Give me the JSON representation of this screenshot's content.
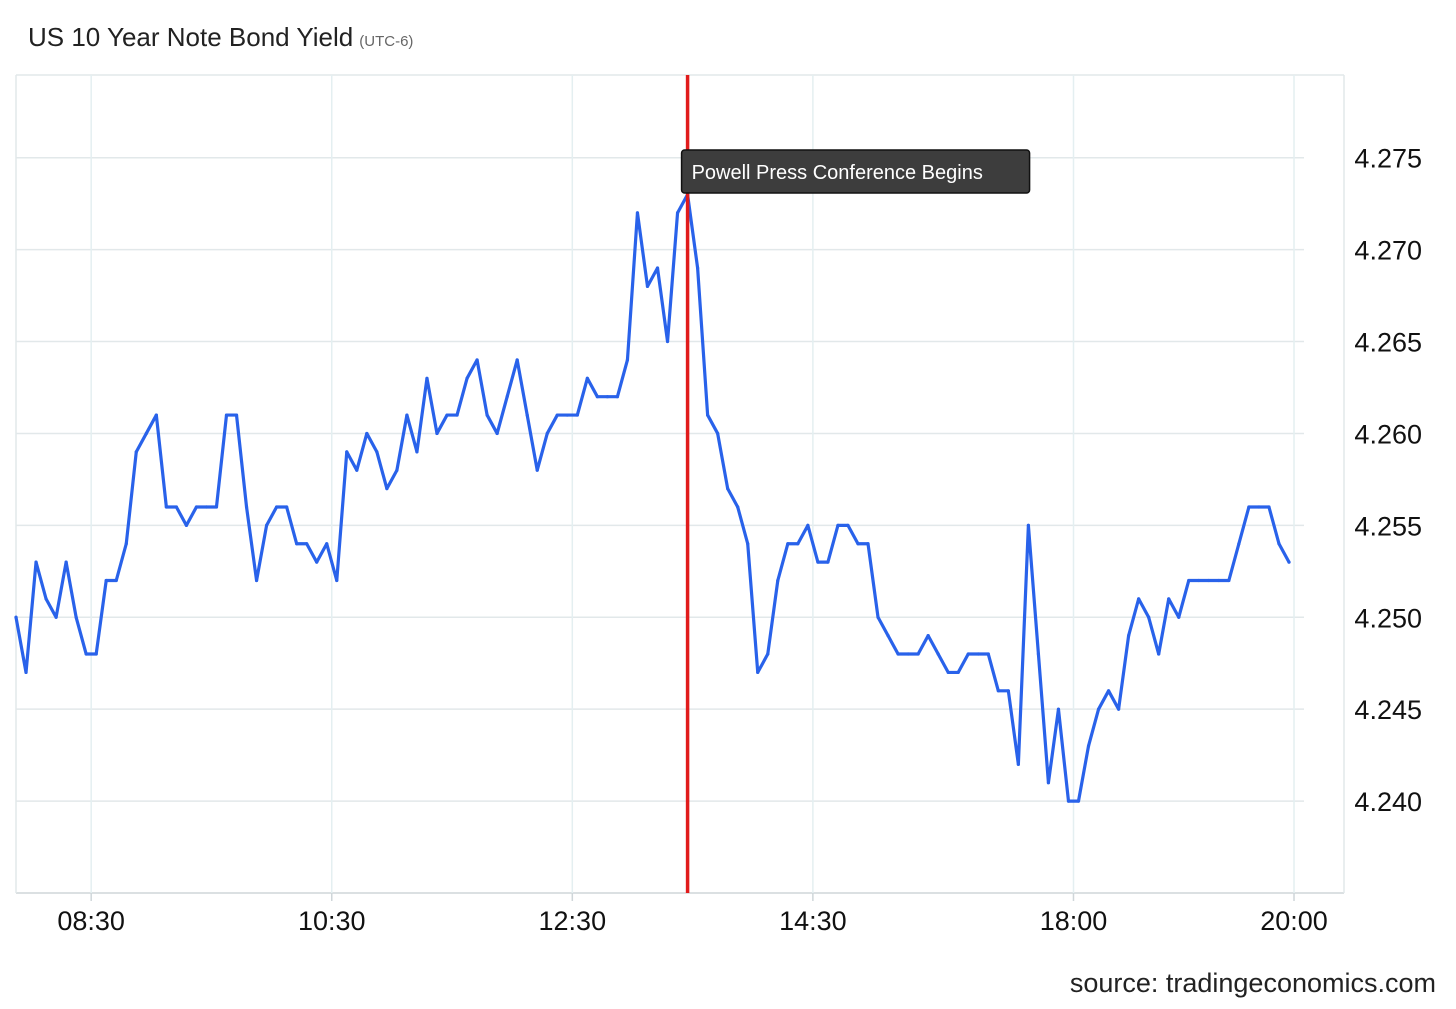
{
  "title": "US 10 Year Note Bond Yield",
  "subtitle": "(UTC-6)",
  "source": "source: tradingeconomics.com",
  "colors": {
    "line": "#2962ea",
    "event_line": "#e11b1b",
    "annotation_bg": "#3d3d3d",
    "grid": "#e2e8ea"
  },
  "chart_data": {
    "type": "line",
    "title": "US 10 Year Note Bond Yield",
    "subtitle": "(UTC-6)",
    "xlabel": "",
    "ylabel": "",
    "x_ticks": [
      {
        "label": "08:30",
        "index": 7.5
      },
      {
        "label": "10:30",
        "index": 31.5
      },
      {
        "label": "12:30",
        "index": 55.5
      },
      {
        "label": "14:30",
        "index": 79.5
      },
      {
        "label": "18:00",
        "index": 105.5
      },
      {
        "label": "20:00",
        "index": 127.5
      }
    ],
    "y_ticks": [
      "4.240",
      "4.245",
      "4.250",
      "4.255",
      "4.260",
      "4.265",
      "4.270",
      "4.275"
    ],
    "ylim": [
      4.235,
      4.2795
    ],
    "y_axis_position": "right",
    "grid": true,
    "series": [
      {
        "values": [
          4.25,
          4.247,
          4.253,
          4.251,
          4.25,
          4.253,
          4.25,
          4.248,
          4.248,
          4.252,
          4.252,
          4.254,
          4.259,
          4.26,
          4.261,
          4.256,
          4.256,
          4.255,
          4.256,
          4.256,
          4.256,
          4.261,
          4.261,
          4.256,
          4.252,
          4.255,
          4.256,
          4.256,
          4.254,
          4.254,
          4.253,
          4.254,
          4.252,
          4.259,
          4.258,
          4.26,
          4.259,
          4.257,
          4.258,
          4.261,
          4.259,
          4.263,
          4.26,
          4.261,
          4.261,
          4.263,
          4.264,
          4.261,
          4.26,
          4.262,
          4.264,
          4.261,
          4.258,
          4.26,
          4.261,
          4.261,
          4.261,
          4.263,
          4.262,
          4.262,
          4.262,
          4.264,
          4.272,
          4.268,
          4.269,
          4.265,
          4.272,
          4.273,
          4.269,
          4.261,
          4.26,
          4.257,
          4.256,
          4.254,
          4.247,
          4.248,
          4.252,
          4.254,
          4.254,
          4.255,
          4.253,
          4.253,
          4.255,
          4.255,
          4.254,
          4.254,
          4.25,
          4.249,
          4.248,
          4.248,
          4.248,
          4.249,
          4.248,
          4.247,
          4.247,
          4.248,
          4.248,
          4.248,
          4.246,
          4.246,
          4.242,
          4.255,
          4.248,
          4.241,
          4.245,
          4.24,
          4.24,
          4.243,
          4.245,
          4.246,
          4.245,
          4.249,
          4.251,
          4.25,
          4.248,
          4.251,
          4.25,
          4.252,
          4.252,
          4.252,
          4.252,
          4.252,
          4.254,
          4.256,
          4.256,
          4.256,
          4.254,
          4.253
        ]
      }
    ],
    "annotations": [
      {
        "type": "vertical_line",
        "x_index": 67,
        "label": "Powell Press Conference Begins"
      }
    ]
  }
}
